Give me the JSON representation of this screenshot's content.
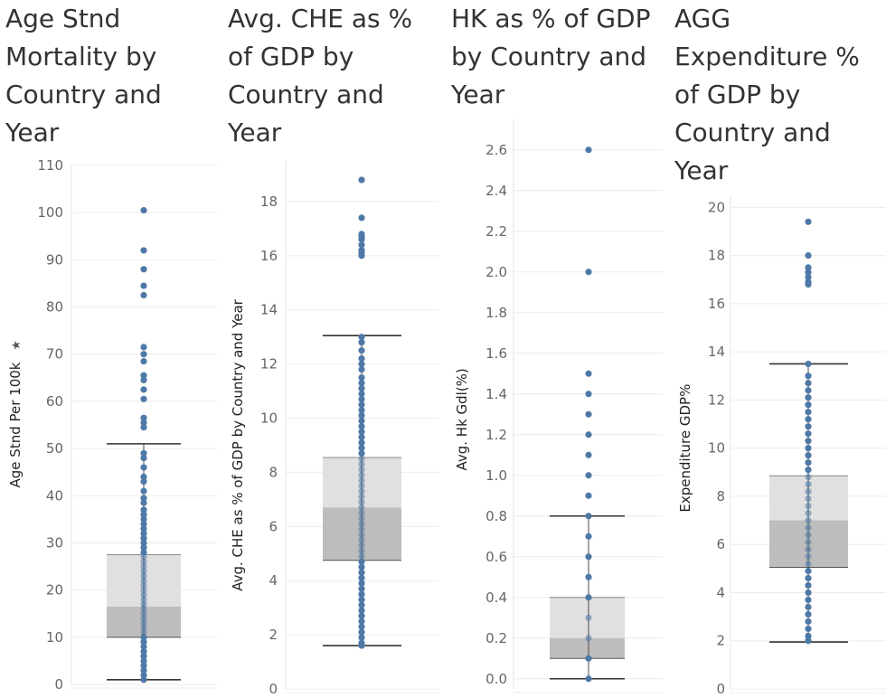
{
  "chart_data": [
    {
      "type": "box",
      "title": "Age Stnd Mortality by Country and Year",
      "ylabel": "Age Stnd Per 100k",
      "ylabel_icon": "pin-icon",
      "ylim": [
        0,
        110
      ],
      "yticks": [
        "0",
        "10",
        "20",
        "30",
        "40",
        "50",
        "60",
        "70",
        "80",
        "90",
        "100",
        "110"
      ],
      "tick_values": [
        0,
        10,
        20,
        30,
        40,
        50,
        60,
        70,
        80,
        90,
        100,
        110
      ],
      "box": {
        "whisker_low": 1,
        "q1": 10,
        "median": 16.5,
        "q3": 27.5,
        "whisker_high": 51
      },
      "points": [
        100.5,
        92,
        88,
        84.5,
        82.5,
        71.5,
        70,
        68.5,
        65.5,
        64.5,
        62.5,
        60.5,
        56.5,
        55.5,
        54.5,
        49,
        48,
        46,
        44,
        43,
        41,
        39.5,
        38.5,
        37,
        36,
        35,
        34,
        33,
        32,
        31,
        30,
        29,
        28,
        27,
        26,
        25,
        24,
        23,
        22,
        21,
        20,
        19,
        18,
        17,
        16,
        15,
        14,
        13,
        12,
        11,
        10,
        9,
        8,
        7,
        6,
        5,
        4,
        3,
        2,
        1
      ]
    },
    {
      "type": "box",
      "title": "Avg. CHE as % of GDP by Country and Year",
      "ylabel": "Avg. CHE as % of GDP by Country and Year",
      "ylim": [
        0,
        19.5
      ],
      "yticks": [
        "0",
        "2",
        "4",
        "6",
        "8",
        "10",
        "12",
        "14",
        "16",
        "18"
      ],
      "tick_values": [
        0,
        2,
        4,
        6,
        8,
        10,
        12,
        14,
        16,
        18
      ],
      "box": {
        "whisker_low": 1.6,
        "q1": 4.75,
        "median": 6.7,
        "q3": 8.55,
        "whisker_high": 13.05
      },
      "points": [
        18.8,
        17.4,
        16.8,
        16.7,
        16.6,
        16.4,
        16.2,
        16.1,
        16.0,
        13.0,
        12.8,
        12.5,
        12.2,
        12.0,
        11.8,
        11.5,
        11.3,
        11.1,
        10.9,
        10.7,
        10.5,
        10.3,
        10.1,
        9.9,
        9.7,
        9.5,
        9.3,
        9.1,
        8.9,
        8.7,
        8.5,
        8.3,
        8.1,
        7.9,
        7.7,
        7.5,
        7.3,
        7.1,
        6.9,
        6.7,
        6.5,
        6.3,
        6.1,
        5.9,
        5.7,
        5.5,
        5.3,
        5.1,
        4.9,
        4.7,
        4.5,
        4.3,
        4.1,
        3.9,
        3.7,
        3.5,
        3.3,
        3.1,
        2.9,
        2.7,
        2.5,
        2.3,
        2.1,
        1.9,
        1.7,
        1.6
      ]
    },
    {
      "type": "box",
      "title": "HK as % of GDP by Country and Year",
      "ylabel": "Avg. Hk Gdl(%)",
      "ylim": [
        -0.05,
        2.75
      ],
      "yticks": [
        "0.0",
        "0.2",
        "0.4",
        "0.6",
        "0.8",
        "1.0",
        "1.2",
        "1.4",
        "1.6",
        "1.8",
        "2.0",
        "2.2",
        "2.4",
        "2.6"
      ],
      "tick_values": [
        0,
        0.2,
        0.4,
        0.6,
        0.8,
        1.0,
        1.2,
        1.4,
        1.6,
        1.8,
        2.0,
        2.2,
        2.4,
        2.6
      ],
      "box": {
        "whisker_low": 0.0,
        "q1": 0.1,
        "median": 0.2,
        "q3": 0.4,
        "whisker_high": 0.8
      },
      "points": [
        2.6,
        2.0,
        1.5,
        1.4,
        1.3,
        1.2,
        1.1,
        1.0,
        0.9,
        0.8,
        0.7,
        0.6,
        0.5,
        0.4,
        0.3,
        0.2,
        0.1,
        0.0
      ]
    },
    {
      "type": "box",
      "title": "AGG Expenditure % of GDP by Country and Year",
      "ylabel": "Expenditure GDP%",
      "ylim": [
        0,
        20.5
      ],
      "yticks": [
        "0",
        "2",
        "4",
        "6",
        "8",
        "10",
        "12",
        "14",
        "16",
        "18",
        "20"
      ],
      "tick_values": [
        0,
        2,
        4,
        6,
        8,
        10,
        12,
        14,
        16,
        18,
        20
      ],
      "box": {
        "whisker_low": 1.95,
        "q1": 5.05,
        "median": 7.0,
        "q3": 8.85,
        "whisker_high": 13.5
      },
      "points": [
        19.4,
        18.0,
        17.5,
        17.3,
        17.1,
        16.9,
        16.8,
        13.5,
        13.0,
        12.7,
        12.4,
        12.1,
        11.8,
        11.5,
        11.2,
        10.9,
        10.6,
        10.3,
        10.0,
        9.7,
        9.4,
        9.1,
        8.8,
        8.5,
        8.2,
        7.9,
        7.6,
        7.3,
        7.0,
        6.7,
        6.4,
        6.1,
        5.8,
        5.5,
        5.2,
        4.9,
        4.6,
        4.3,
        4.0,
        3.7,
        3.4,
        3.1,
        2.8,
        2.5,
        2.2,
        2.0
      ]
    }
  ]
}
